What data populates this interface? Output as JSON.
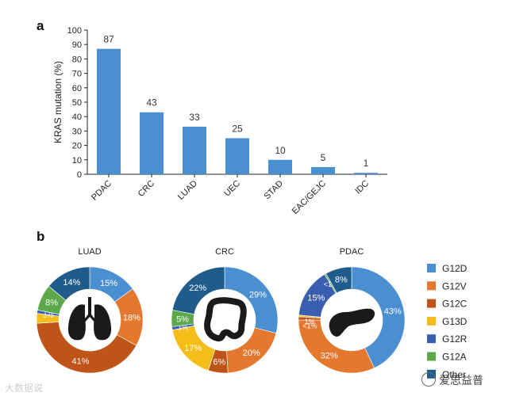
{
  "panel_a_label": "a",
  "panel_b_label": "b",
  "colors": {
    "bar": "#4a8fd0",
    "G12D": "#4a8fd0",
    "G12V": "#e4782f",
    "G12C": "#bf5418",
    "G13D": "#f5bd19",
    "G12R": "#3a5fb0",
    "G12A": "#5ca84a",
    "Other": "#1f5c8c"
  },
  "watermark_left": "大数据说",
  "watermark_right": "爱思益普",
  "chart_data": [
    {
      "type": "bar",
      "title": "",
      "xlabel": "",
      "ylabel": "KRAS mutation (%)",
      "ylim": [
        0,
        100
      ],
      "yticks": [
        "0",
        "10",
        "20",
        "30",
        "40",
        "50",
        "60",
        "70",
        "80",
        "90",
        "100"
      ],
      "categories": [
        "PDAC",
        "CRC",
        "LUAD",
        "UEC",
        "STAD",
        "EAC/GEJC",
        "IDC"
      ],
      "values": [
        87,
        43,
        33,
        25,
        10,
        5,
        1
      ],
      "value_labels": [
        "87",
        "43",
        "33",
        "25",
        "10",
        "5",
        "1"
      ],
      "grid": false
    },
    {
      "type": "pie",
      "variant": "donut",
      "title": "LUAD",
      "center_icon": "lungs-icon",
      "slices": [
        {
          "label": "G12D",
          "value": 15,
          "text": "15%"
        },
        {
          "label": "G12V",
          "value": 18,
          "text": "18%"
        },
        {
          "label": "G12C",
          "value": 41,
          "text": "41%"
        },
        {
          "label": "G13D",
          "value": 3,
          "text": "3%"
        },
        {
          "label": "G12R",
          "value": 1,
          "text": "1%"
        },
        {
          "label": "G12A",
          "value": 8,
          "text": "8%"
        },
        {
          "label": "Other",
          "value": 14,
          "text": "14%"
        }
      ]
    },
    {
      "type": "pie",
      "variant": "donut",
      "title": "CRC",
      "center_icon": "colon-icon",
      "slices": [
        {
          "label": "G12D",
          "value": 29,
          "text": "29%"
        },
        {
          "label": "G12V",
          "value": 20,
          "text": "20%"
        },
        {
          "label": "G12C",
          "value": 6,
          "text": "6%"
        },
        {
          "label": "G13D",
          "value": 17,
          "text": "17%"
        },
        {
          "label": "G12R",
          "value": 1,
          "text": "1%"
        },
        {
          "label": "G12A",
          "value": 5,
          "text": "5%"
        },
        {
          "label": "Other",
          "value": 22,
          "text": "22%"
        }
      ]
    },
    {
      "type": "pie",
      "variant": "donut",
      "title": "PDAC",
      "center_icon": "pancreas-icon",
      "slices": [
        {
          "label": "G12D",
          "value": 43,
          "text": "43%"
        },
        {
          "label": "G12V",
          "value": 32,
          "text": "32%"
        },
        {
          "label": "G12C",
          "value": 1,
          "text": "1%"
        },
        {
          "label": "G13D",
          "value": 0.5,
          "text": "<1%"
        },
        {
          "label": "G12R",
          "value": 15,
          "text": "15%"
        },
        {
          "label": "G12A",
          "value": 0.5,
          "text": "<1%"
        },
        {
          "label": "Other",
          "value": 8,
          "text": "8%"
        }
      ]
    }
  ],
  "legend": [
    {
      "label": "G12D",
      "color": "#4a8fd0"
    },
    {
      "label": "G12V",
      "color": "#e4782f"
    },
    {
      "label": "G12C",
      "color": "#bf5418"
    },
    {
      "label": "G13D",
      "color": "#f5bd19"
    },
    {
      "label": "G12R",
      "color": "#3a5fb0"
    },
    {
      "label": "G12A",
      "color": "#5ca84a"
    },
    {
      "label": "Other",
      "color": "#1f5c8c"
    }
  ]
}
